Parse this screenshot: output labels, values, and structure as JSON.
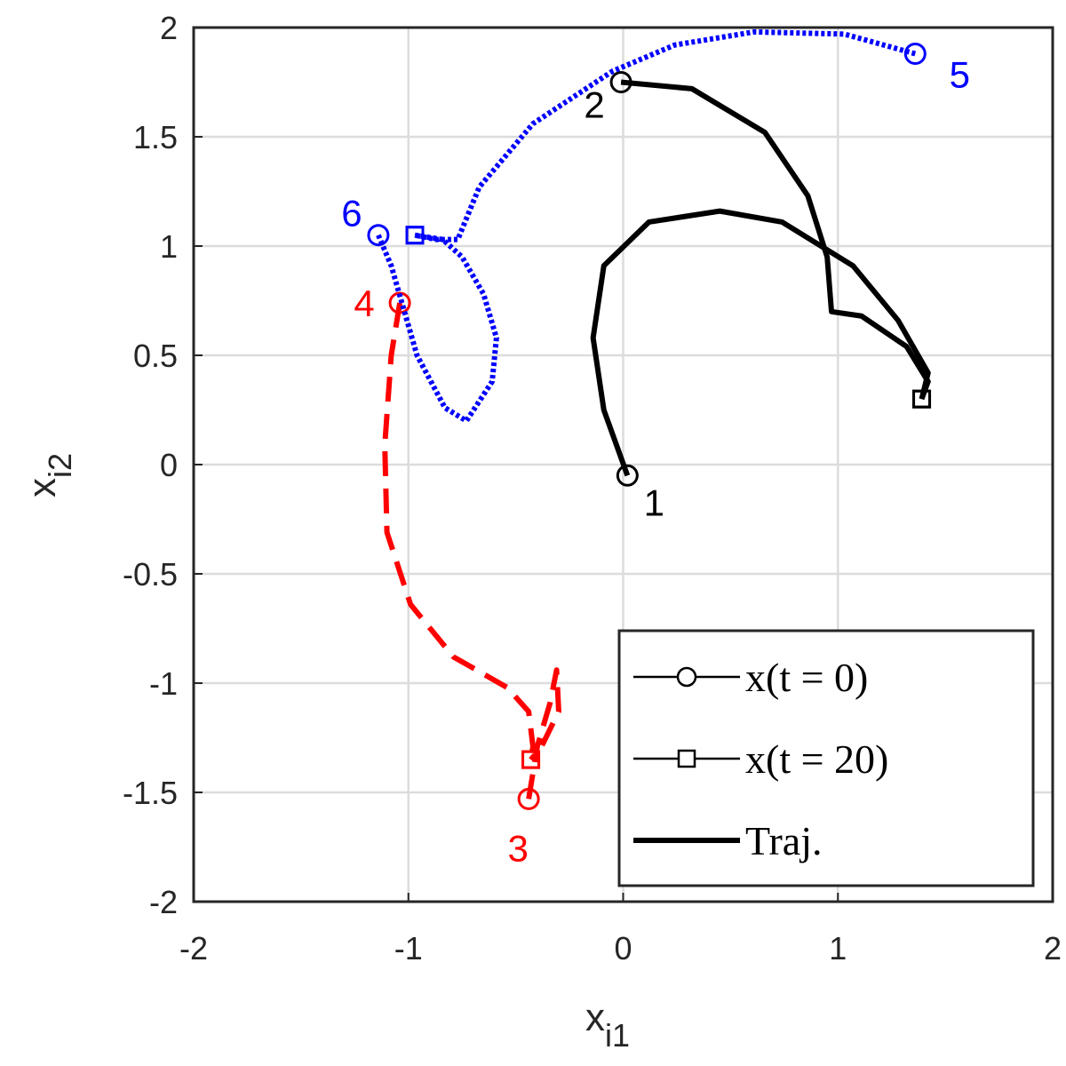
{
  "chart_data": {
    "type": "line",
    "xlabel": "x",
    "xlabel_sub": "i1",
    "ylabel": "x",
    "ylabel_sub": "i2",
    "xlim": [
      -2,
      2
    ],
    "ylim": [
      -2,
      2
    ],
    "xticks": [
      -2,
      -1,
      0,
      1,
      2
    ],
    "yticks": [
      -2,
      -1.5,
      -1,
      -0.5,
      0,
      0.5,
      1,
      1.5,
      2
    ],
    "grid": true,
    "legend_position": "lower right",
    "legend": [
      "x(t = 0)",
      "x(t = 20)",
      "Traj."
    ],
    "series": [
      {
        "label": "1",
        "color": "#000000",
        "style": "solid",
        "x": [
          0.02,
          -0.09,
          -0.14,
          -0.09,
          0.12,
          0.45,
          0.74,
          1.07,
          1.28,
          1.42,
          1.39
        ],
        "y": [
          -0.05,
          0.25,
          0.58,
          0.91,
          1.11,
          1.16,
          1.11,
          0.91,
          0.66,
          0.42,
          0.3
        ]
      },
      {
        "label": "2",
        "color": "#000000",
        "style": "solid",
        "x": [
          -0.01,
          0.32,
          0.66,
          0.86,
          0.95,
          0.97,
          1.11,
          1.32,
          1.42,
          1.39
        ],
        "y": [
          1.75,
          1.72,
          1.52,
          1.23,
          0.95,
          0.7,
          0.68,
          0.54,
          0.38,
          0.3
        ]
      },
      {
        "label": "3",
        "color": "#ff0000",
        "style": "dashed",
        "x": [
          -0.44,
          -0.4,
          -0.34,
          -0.31,
          -0.3,
          -0.38,
          -0.43
        ],
        "y": [
          -1.53,
          -1.29,
          -1.09,
          -0.94,
          -1.13,
          -1.29,
          -1.35
        ]
      },
      {
        "label": "4",
        "color": "#ff0000",
        "style": "dashed",
        "x": [
          -1.04,
          -1.08,
          -1.11,
          -1.1,
          -0.99,
          -0.79,
          -0.54,
          -0.44,
          -0.42,
          -0.43
        ],
        "y": [
          0.74,
          0.5,
          0.09,
          -0.31,
          -0.64,
          -0.88,
          -1.02,
          -1.13,
          -1.29,
          -1.35
        ]
      },
      {
        "label": "5",
        "color": "#0000ff",
        "style": "dotted",
        "x": [
          1.36,
          1.03,
          0.61,
          0.24,
          -0.05,
          -0.42,
          -0.67,
          -0.77,
          -0.87,
          -0.97
        ],
        "y": [
          1.88,
          1.97,
          1.98,
          1.92,
          1.8,
          1.56,
          1.27,
          1.03,
          1.03,
          1.05
        ]
      },
      {
        "label": "6",
        "color": "#0000ff",
        "style": "dotted",
        "x": [
          -1.14,
          -1.08,
          -0.96,
          -0.83,
          -0.73,
          -0.61,
          -0.59,
          -0.65,
          -0.75,
          -0.84,
          -0.97
        ],
        "y": [
          1.05,
          0.91,
          0.5,
          0.26,
          0.2,
          0.38,
          0.58,
          0.78,
          0.95,
          1.03,
          1.05
        ]
      }
    ]
  }
}
